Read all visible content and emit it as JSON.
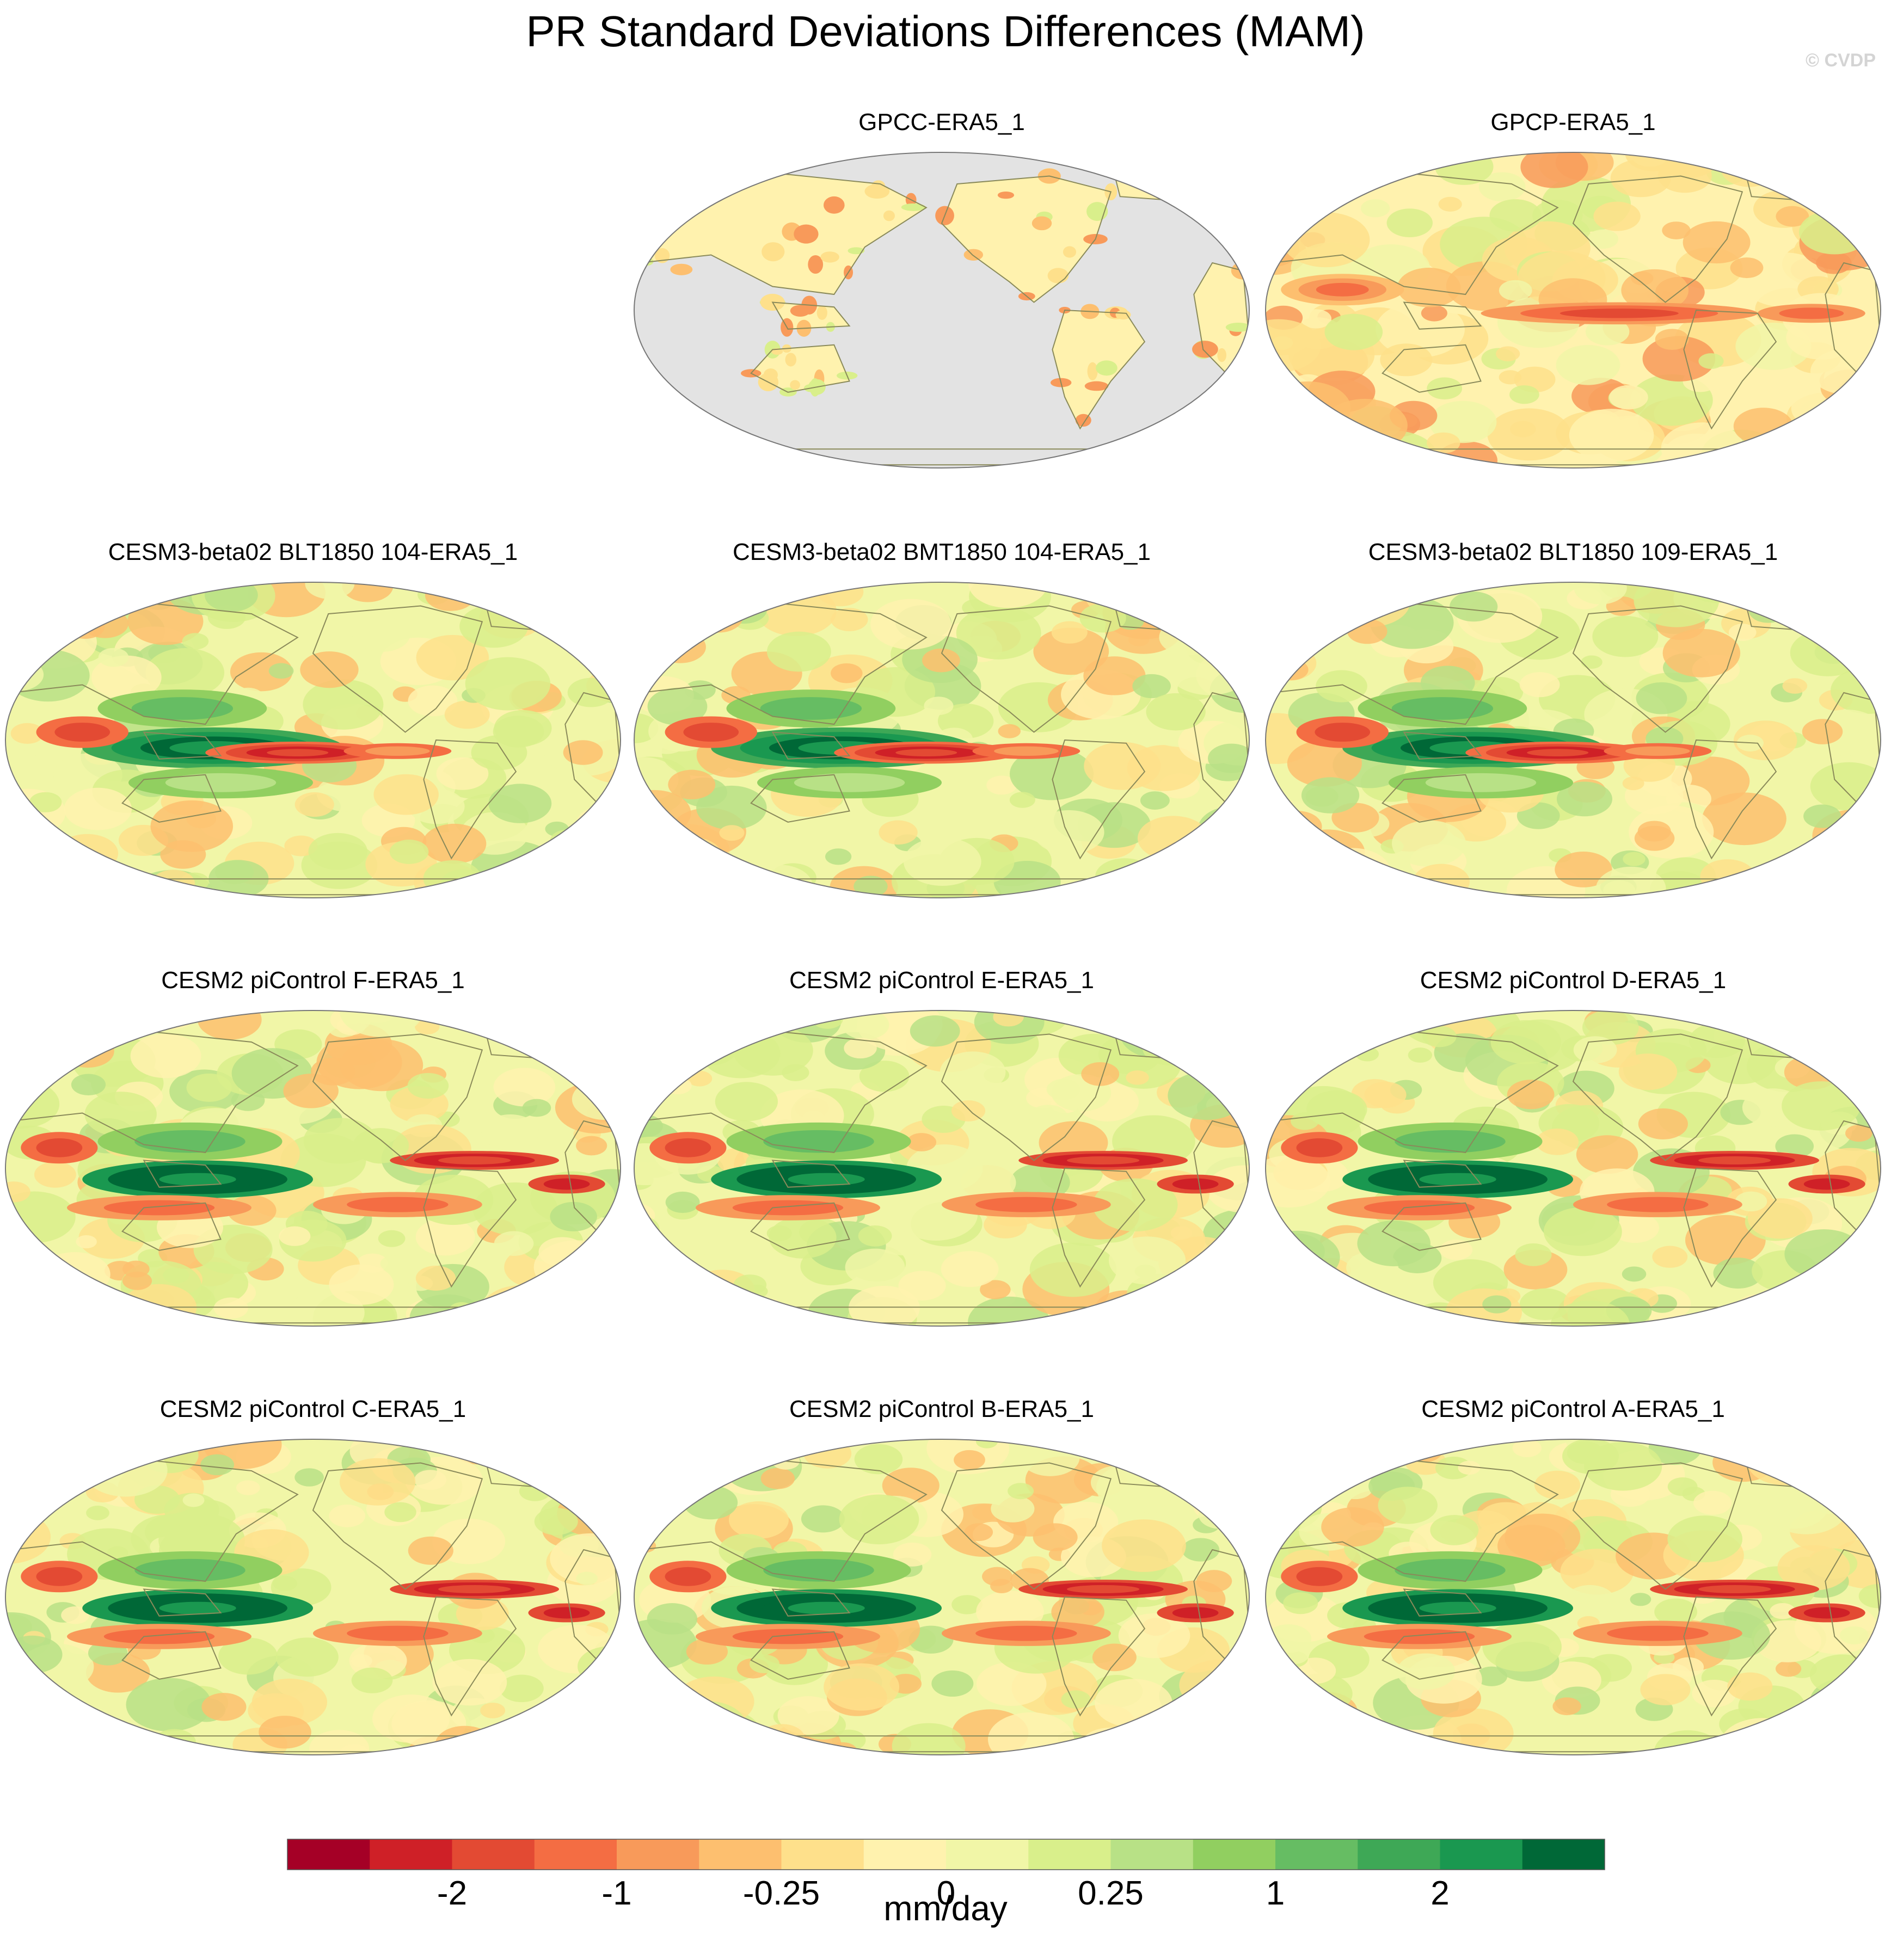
{
  "title": "PR Standard Deviations Differences (MAM)",
  "watermark": "© CVDP",
  "panels": [
    {
      "title": "GPCC-ERA5_1",
      "land_only": true
    },
    {
      "title": "GPCP-ERA5_1",
      "land_only": false
    },
    {
      "title": "CESM3-beta02 BLT1850 104-ERA5_1",
      "land_only": false
    },
    {
      "title": "CESM3-beta02 BMT1850 104-ERA5_1",
      "land_only": false
    },
    {
      "title": "CESM3-beta02 BLT1850 109-ERA5_1",
      "land_only": false
    },
    {
      "title": "CESM2 piControl F-ERA5_1",
      "land_only": false
    },
    {
      "title": "CESM2 piControl E-ERA5_1",
      "land_only": false
    },
    {
      "title": "CESM2 piControl D-ERA5_1",
      "land_only": false
    },
    {
      "title": "CESM2 piControl C-ERA5_1",
      "land_only": false
    },
    {
      "title": "CESM2 piControl B-ERA5_1",
      "land_only": false
    },
    {
      "title": "CESM2 piControl A-ERA5_1",
      "land_only": false
    }
  ],
  "legend": {
    "units": "mm/day",
    "colors": [
      "#a50026",
      "#cf2027",
      "#e34a33",
      "#f46d43",
      "#f89a5a",
      "#fdbf6f",
      "#fee08b",
      "#fff2ae",
      "#f1f6a7",
      "#d9ef8b",
      "#b8e186",
      "#91cf60",
      "#66bd63",
      "#3ea856",
      "#1a9850",
      "#006837"
    ],
    "tick_labels": [
      "-2",
      "-1",
      "-0.25",
      "0",
      "0.25",
      "1",
      "2"
    ],
    "tick_boundary_index": [
      2,
      4,
      6,
      8,
      10,
      12,
      14
    ]
  },
  "colors": {
    "missing": "#e3e3e3",
    "coastline": "#8a8a5a",
    "outline": "#777777"
  }
}
